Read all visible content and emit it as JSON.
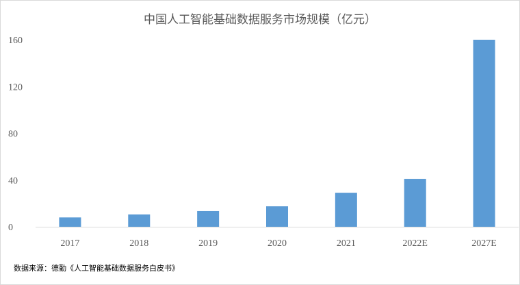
{
  "chart_data": {
    "type": "bar",
    "title": "中国人工智能基础数据服务市场规模（亿元）",
    "categories": [
      "2017",
      "2018",
      "2019",
      "2020",
      "2021",
      "2022E",
      "2027E"
    ],
    "values": [
      8,
      10.5,
      13.5,
      17.5,
      29,
      41,
      160
    ],
    "ylim": [
      0,
      160
    ],
    "yticks": [
      0,
      40,
      80,
      120,
      160
    ],
    "xlabel": "",
    "ylabel": "",
    "grid": false,
    "bar_color": "#5b9bd5"
  },
  "source_note": "数据来源：德勤《人工智能基础数据服务白皮书》"
}
